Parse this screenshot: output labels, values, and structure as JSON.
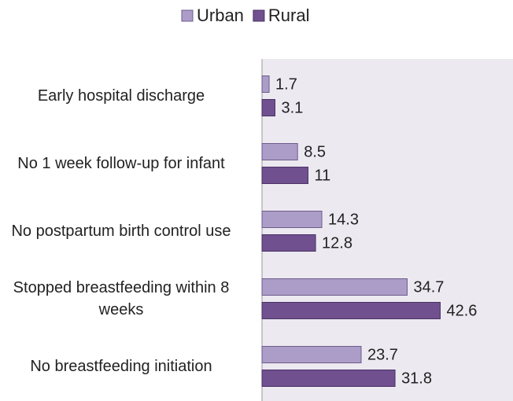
{
  "chart_data": {
    "type": "hbar",
    "categories": [
      "Early hospital discharge",
      "No 1 week follow-up for infant",
      "No postpartum birth control use",
      "Stopped breastfeeding within 8 weeks",
      "No breastfeeding initiation"
    ],
    "series": [
      {
        "name": "Urban",
        "color": "#ab9dc8",
        "values": [
          1.7,
          8.5,
          14.3,
          34.7,
          23.7
        ]
      },
      {
        "name": "Rural",
        "color": "#70508f",
        "values": [
          3.1,
          11,
          12.8,
          42.6,
          31.8
        ]
      }
    ],
    "xlim": [
      0,
      60
    ],
    "legend": "top"
  }
}
